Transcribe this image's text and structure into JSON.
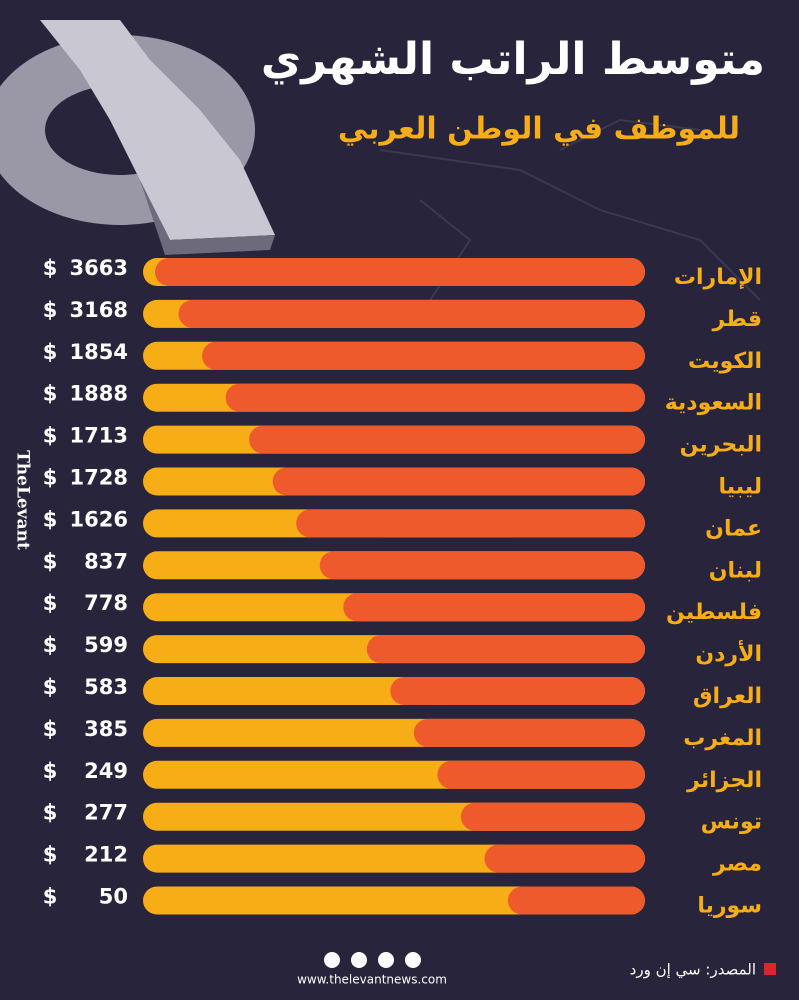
{
  "header": {
    "title": "متوسط الراتب الشهري",
    "subtitle": "للموظف في الوطن العربي"
  },
  "currency": "$",
  "rows": [
    {
      "country": "الإمارات",
      "salary": 3663
    },
    {
      "country": "قطر",
      "salary": 3168
    },
    {
      "country": "الكويت",
      "salary": 1854
    },
    {
      "country": "السعودية",
      "salary": 1888
    },
    {
      "country": "البحرين",
      "salary": 1713
    },
    {
      "country": "ليبيا",
      "salary": 1728
    },
    {
      "country": "عمان",
      "salary": 1626
    },
    {
      "country": "لبنان",
      "salary": 837
    },
    {
      "country": "فلسطين",
      "salary": 778
    },
    {
      "country": "الأردن",
      "salary": 599
    },
    {
      "country": "العراق",
      "salary": 583
    },
    {
      "country": "المغرب",
      "salary": 385
    },
    {
      "country": "الجزائر",
      "salary": 249
    },
    {
      "country": "تونس",
      "salary": 277
    },
    {
      "country": "مصر",
      "salary": 212
    },
    {
      "country": "سوريا",
      "salary": 50
    }
  ],
  "logo": "TheLevant",
  "footer": {
    "website": "www.thelevantnews.com",
    "source": "المصدر: سي إن ورد"
  }
}
